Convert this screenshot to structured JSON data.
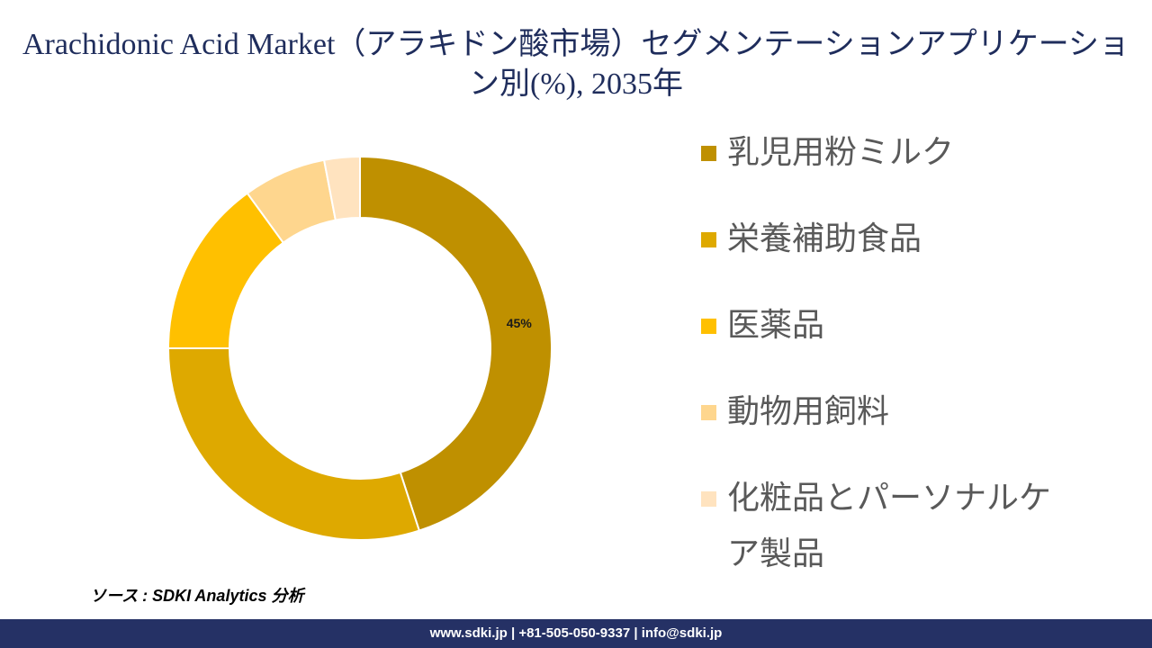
{
  "source": "ソース : SDKI Analytics 分析",
  "footer": {
    "text": "www.sdki.jp | +81-505-050-9337 | info@sdki.jp",
    "background": "#253165"
  },
  "chart_data": {
    "type": "pie",
    "donut": true,
    "title": "Arachidonic Acid Market（アラキドン酸市場）セグメンテーションアプリケーション別(%), 2035年",
    "categories": [
      "乳児用粉ミルク",
      "栄養補助食品",
      "医薬品",
      "動物用飼料",
      "化粧品とパーソナルケア製品"
    ],
    "values": [
      45,
      30,
      15,
      7,
      3
    ],
    "data_labels": [
      "45%",
      null,
      null,
      null,
      null
    ],
    "colors": [
      "#BF9000",
      "#DEA900",
      "#FFC000",
      "#FED68E",
      "#FFE3BF"
    ],
    "legend": "right"
  }
}
